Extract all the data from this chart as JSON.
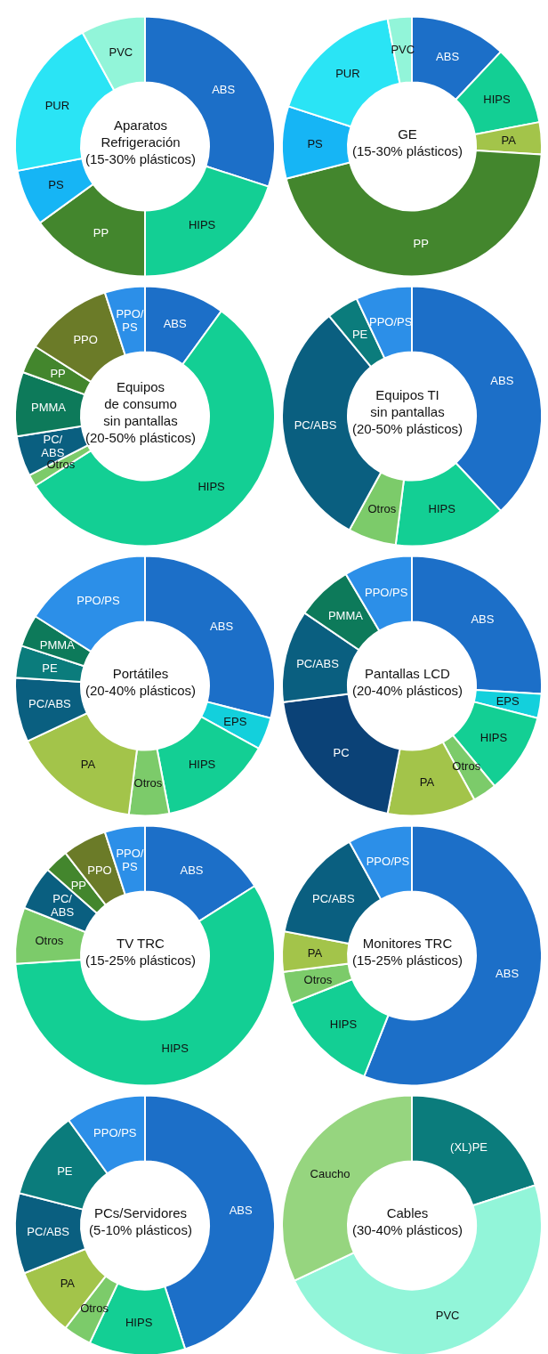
{
  "chart_data": [
    {
      "type": "donut",
      "title": "Aparatos\nRefrigeración\n(15-30% plásticos)",
      "categories": [
        "ABS",
        "HIPS",
        "PP",
        "PS",
        "PUR",
        "PVC"
      ],
      "values": [
        30,
        20,
        15,
        7,
        20,
        8
      ],
      "colors": [
        "#1c6fc8",
        "#13cf94",
        "#43862d",
        "#16b5f5",
        "#2ae4f5",
        "#92f5d9"
      ]
    },
    {
      "type": "donut",
      "title": "GE\n(15-30% plásticos)",
      "categories": [
        "ABS",
        "HIPS",
        "PA",
        "PP",
        "PS",
        "PUR",
        "PVC"
      ],
      "values": [
        12,
        10,
        4,
        45,
        9,
        17,
        3
      ],
      "colors": [
        "#1c6fc8",
        "#13cf94",
        "#a3c44a",
        "#43862d",
        "#16b5f5",
        "#2ae4f5",
        "#92f5d9"
      ]
    },
    {
      "type": "donut",
      "title": "Equipos\nde consumo\nsin pantallas\n(20-50% plásticos)",
      "categories": [
        "ABS",
        "HIPS",
        "Otros",
        "PC/ABS",
        "PMMA",
        "PP",
        "PPO",
        "PPO/PS"
      ],
      "values": [
        10,
        56,
        1.5,
        5,
        8,
        3.5,
        11,
        5
      ],
      "colors": [
        "#1c6fc8",
        "#13cf94",
        "#7ccb6a",
        "#0a5f80",
        "#0d7a5a",
        "#43862d",
        "#6b7b28",
        "#2c8fe8"
      ]
    },
    {
      "type": "donut",
      "title": "Equipos TI\nsin pantallas\n(20-50% plásticos)",
      "categories": [
        "ABS",
        "HIPS",
        "Otros",
        "PC/ABS",
        "PE",
        "PPO/PS"
      ],
      "values": [
        38,
        14,
        6,
        31,
        4,
        7
      ],
      "colors": [
        "#1c6fc8",
        "#13cf94",
        "#7ccb6a",
        "#0a5f80",
        "#0b7c7c",
        "#2c8fe8"
      ]
    },
    {
      "type": "donut",
      "title": "Portátiles\n(20-40% plásticos)",
      "categories": [
        "ABS",
        "EPS",
        "HIPS",
        "Otros",
        "PA",
        "PC/ABS",
        "PE",
        "PMMA",
        "PPO/PS"
      ],
      "values": [
        29,
        4,
        14,
        5,
        16,
        8,
        4,
        4,
        16
      ],
      "colors": [
        "#1c6fc8",
        "#13d0dc",
        "#13cf94",
        "#7ccb6a",
        "#a3c44a",
        "#0a5f80",
        "#0b7c7c",
        "#0d7a5a",
        "#2c8fe8"
      ]
    },
    {
      "type": "donut",
      "title": "Pantallas LCD\n(20-40% plásticos)",
      "categories": [
        "ABS",
        "EPS",
        "HIPS",
        "Otros",
        "PA",
        "PC",
        "PC/ABS",
        "PMMA",
        "PPO/PS"
      ],
      "values": [
        26,
        3,
        10,
        3,
        11,
        20,
        11.5,
        7,
        8.5
      ],
      "colors": [
        "#1c6fc8",
        "#13d0dc",
        "#13cf94",
        "#7ccb6a",
        "#a3c44a",
        "#0b4277",
        "#0a5f80",
        "#0d7a5a",
        "#2c8fe8"
      ]
    },
    {
      "type": "donut",
      "title": "TV TRC\n(15-25% plásticos)",
      "categories": [
        "ABS",
        "HIPS",
        "Otros",
        "PC/ABS",
        "PP",
        "PPO",
        "PPO/PS"
      ],
      "values": [
        16,
        58,
        7,
        5.5,
        3,
        5.5,
        5
      ],
      "colors": [
        "#1c6fc8",
        "#13cf94",
        "#7ccb6a",
        "#0a5f80",
        "#43862d",
        "#6b7b28",
        "#2c8fe8"
      ]
    },
    {
      "type": "donut",
      "title": "Monitores TRC\n(15-25% plásticos)",
      "categories": [
        "ABS",
        "HIPS",
        "Otros",
        "PA",
        "PC/ABS",
        "PPO/PS"
      ],
      "values": [
        56,
        13,
        4,
        5,
        14,
        8
      ],
      "colors": [
        "#1c6fc8",
        "#13cf94",
        "#7ccb6a",
        "#a3c44a",
        "#0a5f80",
        "#2c8fe8"
      ]
    },
    {
      "type": "donut",
      "title": "PCs/Servidores\n(5-10% plásticos)",
      "categories": [
        "ABS",
        "HIPS",
        "Otros",
        "PA",
        "PC/ABS",
        "PE",
        "PPO/PS"
      ],
      "values": [
        45,
        12,
        3.5,
        8.5,
        10,
        11,
        10
      ],
      "colors": [
        "#1c6fc8",
        "#13cf94",
        "#7ccb6a",
        "#a3c44a",
        "#0a5f80",
        "#0b7c7c",
        "#2c8fe8"
      ]
    },
    {
      "type": "donut",
      "title": "Cables\n(30-40% plásticos)",
      "categories": [
        "(XL)PE",
        "PVC",
        "Caucho"
      ],
      "values": [
        20,
        48,
        32
      ],
      "colors": [
        "#0b7c7c",
        "#92f5d9",
        "#96d57f"
      ]
    }
  ]
}
